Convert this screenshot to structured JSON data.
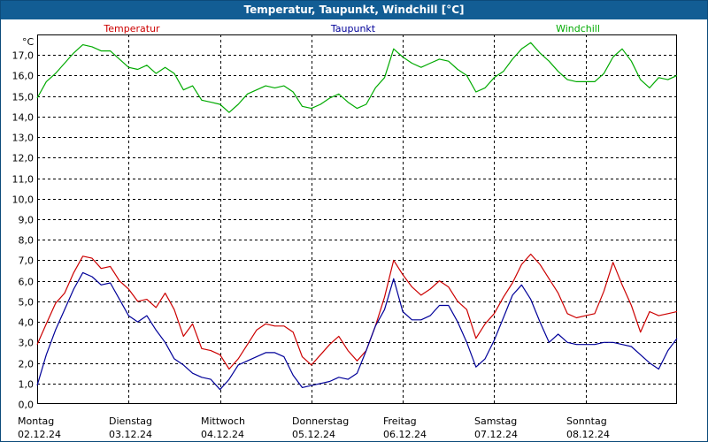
{
  "chart_data": {
    "type": "line",
    "title": "Temperatur, Taupunkt, Windchill [°C]",
    "ylabel": "°C",
    "ylim": [
      0,
      18
    ],
    "yticks": [
      "0,0",
      "1,0",
      "2,0",
      "3,0",
      "4,0",
      "5,0",
      "6,0",
      "7,0",
      "8,0",
      "9,0",
      "10,0",
      "11,0",
      "12,0",
      "13,0",
      "14,0",
      "15,0",
      "16,0",
      "17,0"
    ],
    "xlim": [
      0,
      7
    ],
    "grid": true,
    "days": [
      {
        "name": "Montag",
        "date": "02.12.24"
      },
      {
        "name": "Dienstag",
        "date": "03.12.24"
      },
      {
        "name": "Mittwoch",
        "date": "04.12.24"
      },
      {
        "name": "Donnerstag",
        "date": "05.12.24"
      },
      {
        "name": "Freitag",
        "date": "06.12.24"
      },
      {
        "name": "Samstag",
        "date": "07.12.24"
      },
      {
        "name": "Sonntag",
        "date": "08.12.24"
      }
    ],
    "series": [
      {
        "name": "Temperatur",
        "color": "#cc0000",
        "x": [
          0,
          0.1,
          0.2,
          0.3,
          0.4,
          0.5,
          0.6,
          0.7,
          0.8,
          0.9,
          1.0,
          1.1,
          1.2,
          1.3,
          1.4,
          1.5,
          1.6,
          1.7,
          1.8,
          1.9,
          2.0,
          2.1,
          2.2,
          2.3,
          2.4,
          2.5,
          2.6,
          2.7,
          2.8,
          2.9,
          3.0,
          3.1,
          3.2,
          3.3,
          3.4,
          3.5,
          3.6,
          3.7,
          3.8,
          3.9,
          4.0,
          4.1,
          4.2,
          4.3,
          4.4,
          4.5,
          4.6,
          4.7,
          4.8,
          4.9,
          5.0,
          5.1,
          5.2,
          5.3,
          5.4,
          5.5,
          5.6,
          5.7,
          5.8,
          5.9,
          6.0,
          6.1,
          6.2,
          6.3,
          6.4,
          6.5,
          6.6,
          6.7,
          6.8,
          6.9,
          7.0
        ],
        "values": [
          2.9,
          3.9,
          4.9,
          5.4,
          6.4,
          7.2,
          7.1,
          6.6,
          6.7,
          6.0,
          5.6,
          5.0,
          5.1,
          4.7,
          5.4,
          4.6,
          3.3,
          3.9,
          2.7,
          2.6,
          2.4,
          1.7,
          2.2,
          2.9,
          3.6,
          3.9,
          3.8,
          3.8,
          3.5,
          2.3,
          1.9,
          2.4,
          2.9,
          3.3,
          2.6,
          2.1,
          2.6,
          3.8,
          5.2,
          7.0,
          6.3,
          5.7,
          5.3,
          5.6,
          6.0,
          5.7,
          5.0,
          4.6,
          3.2,
          3.9,
          4.4,
          5.2,
          5.9,
          6.8,
          7.3,
          6.8,
          6.1,
          5.4,
          4.4,
          4.2,
          4.3,
          4.4,
          5.5,
          6.9,
          5.8,
          4.8,
          3.5,
          4.5,
          4.3,
          4.4,
          4.5
        ]
      },
      {
        "name": "Taupunkt",
        "color": "#000099",
        "x": [
          0,
          0.1,
          0.2,
          0.3,
          0.4,
          0.5,
          0.6,
          0.7,
          0.8,
          0.9,
          1.0,
          1.1,
          1.2,
          1.3,
          1.4,
          1.5,
          1.6,
          1.7,
          1.8,
          1.9,
          2.0,
          2.1,
          2.2,
          2.3,
          2.4,
          2.5,
          2.6,
          2.7,
          2.8,
          2.9,
          3.0,
          3.1,
          3.2,
          3.3,
          3.4,
          3.5,
          3.6,
          3.7,
          3.8,
          3.9,
          4.0,
          4.1,
          4.2,
          4.3,
          4.4,
          4.5,
          4.6,
          4.7,
          4.8,
          4.9,
          5.0,
          5.1,
          5.2,
          5.3,
          5.4,
          5.5,
          5.6,
          5.7,
          5.8,
          5.9,
          6.0,
          6.1,
          6.2,
          6.3,
          6.4,
          6.5,
          6.6,
          6.7,
          6.8,
          6.9,
          7.0
        ],
        "values": [
          0.9,
          2.4,
          3.6,
          4.6,
          5.6,
          6.4,
          6.2,
          5.8,
          5.9,
          5.1,
          4.3,
          4.0,
          4.3,
          3.6,
          3.0,
          2.2,
          1.9,
          1.5,
          1.3,
          1.2,
          0.7,
          1.2,
          1.9,
          2.1,
          2.3,
          2.5,
          2.5,
          2.3,
          1.4,
          0.8,
          0.9,
          1.0,
          1.1,
          1.3,
          1.2,
          1.5,
          2.6,
          3.8,
          4.6,
          6.1,
          4.5,
          4.1,
          4.1,
          4.3,
          4.8,
          4.8,
          4.0,
          3.0,
          1.8,
          2.2,
          3.1,
          4.2,
          5.3,
          5.8,
          5.1,
          4.0,
          3.0,
          3.4,
          3.0,
          2.9,
          2.9,
          2.9,
          3.0,
          3.0,
          2.9,
          2.8,
          2.4,
          2.0,
          1.7,
          2.6,
          3.2
        ]
      },
      {
        "name": "Windchill",
        "color": "#00aa00",
        "x": [
          0,
          0.1,
          0.2,
          0.3,
          0.4,
          0.5,
          0.6,
          0.7,
          0.8,
          0.9,
          1.0,
          1.1,
          1.2,
          1.3,
          1.4,
          1.5,
          1.6,
          1.7,
          1.8,
          1.9,
          2.0,
          2.1,
          2.2,
          2.3,
          2.4,
          2.5,
          2.6,
          2.7,
          2.8,
          2.9,
          3.0,
          3.1,
          3.2,
          3.3,
          3.4,
          3.5,
          3.6,
          3.7,
          3.8,
          3.9,
          4.0,
          4.1,
          4.2,
          4.3,
          4.4,
          4.5,
          4.6,
          4.7,
          4.8,
          4.9,
          5.0,
          5.1,
          5.2,
          5.3,
          5.4,
          5.5,
          5.6,
          5.7,
          5.8,
          5.9,
          6.0,
          6.1,
          6.2,
          6.3,
          6.4,
          6.5,
          6.6,
          6.7,
          6.8,
          6.9,
          7.0
        ],
        "values": [
          14.9,
          15.7,
          16.1,
          16.6,
          17.1,
          17.5,
          17.4,
          17.2,
          17.2,
          16.8,
          16.4,
          16.3,
          16.5,
          16.1,
          16.4,
          16.1,
          15.3,
          15.5,
          14.8,
          14.7,
          14.6,
          14.2,
          14.6,
          15.1,
          15.3,
          15.5,
          15.4,
          15.5,
          15.2,
          14.5,
          14.4,
          14.6,
          14.9,
          15.1,
          14.7,
          14.4,
          14.6,
          15.4,
          15.9,
          17.3,
          16.9,
          16.6,
          16.4,
          16.6,
          16.8,
          16.7,
          16.3,
          16.0,
          15.2,
          15.4,
          15.9,
          16.2,
          16.8,
          17.3,
          17.6,
          17.1,
          16.7,
          16.2,
          15.8,
          15.7,
          15.7,
          15.7,
          16.1,
          16.9,
          17.3,
          16.7,
          15.8,
          15.4,
          15.9,
          15.8,
          16.0
        ]
      }
    ]
  }
}
